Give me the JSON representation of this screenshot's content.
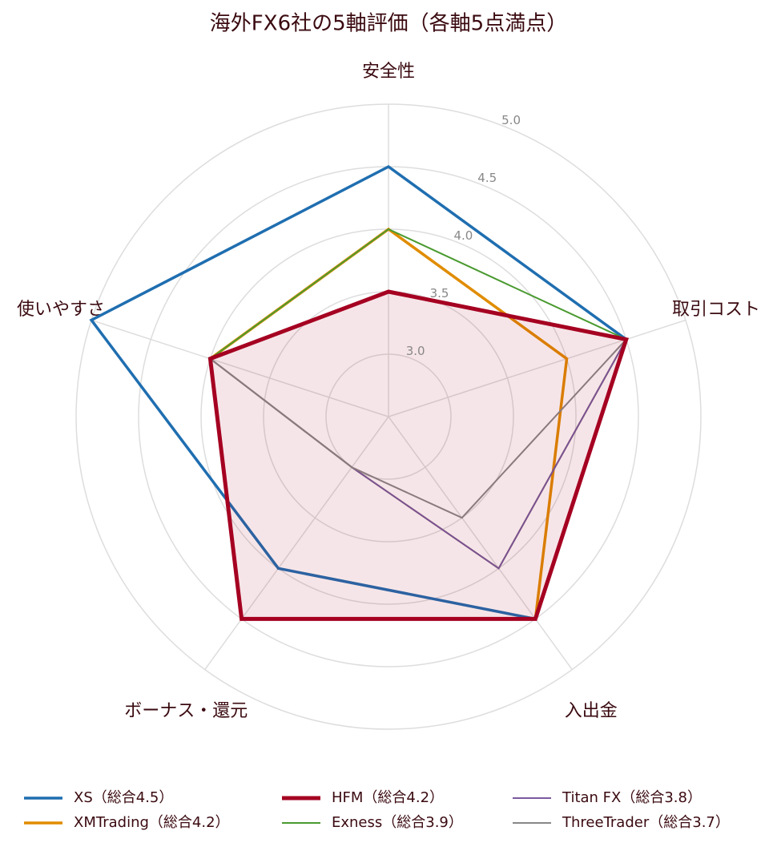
{
  "chart_data": {
    "type": "radar",
    "title": "海外FX6社の5軸評価（各軸5点満点）",
    "categories": [
      "安全性",
      "取引コスト",
      "入出金",
      "ボーナス・還元",
      "使いやすさ"
    ],
    "rlim": [
      2.5,
      5.0
    ],
    "rticks": [
      {
        "value": 3.0,
        "label": "3.0"
      },
      {
        "value": 3.5,
        "label": "3.5"
      },
      {
        "value": 4.0,
        "label": "4.0"
      },
      {
        "value": 4.5,
        "label": "4.5"
      },
      {
        "value": 5.0,
        "label": "5.0"
      }
    ],
    "grid": true,
    "legend": "bottom",
    "series": [
      {
        "name": "XS（総合4.5）",
        "color": "#1f6eb0",
        "line_width": 3.5,
        "values": [
          4.5,
          4.5,
          4.5,
          4.0,
          5.0
        ]
      },
      {
        "name": "XMTrading（総合4.2）",
        "color": "#e08c00",
        "line_width": 3.5,
        "values": [
          4.0,
          4.0,
          4.5,
          4.5,
          4.0
        ]
      },
      {
        "name": "HFM（総合4.2）",
        "color": "#a50021",
        "line_width": 5,
        "fill": true,
        "values": [
          3.5,
          4.5,
          4.5,
          4.5,
          4.0
        ]
      },
      {
        "name": "Exness（総合3.9）",
        "color": "#4a9a30",
        "line_width": 2,
        "values": [
          4.0,
          4.5,
          4.0,
          3.0,
          4.0
        ]
      },
      {
        "name": "Titan FX（総合3.8）",
        "color": "#7a5aa0",
        "line_width": 2,
        "values": [
          3.5,
          4.5,
          4.0,
          3.0,
          4.0
        ]
      },
      {
        "name": "ThreeTrader（総合3.7）",
        "color": "#888888",
        "line_width": 2,
        "values": [
          3.5,
          4.5,
          3.5,
          3.0,
          4.0
        ]
      }
    ]
  }
}
